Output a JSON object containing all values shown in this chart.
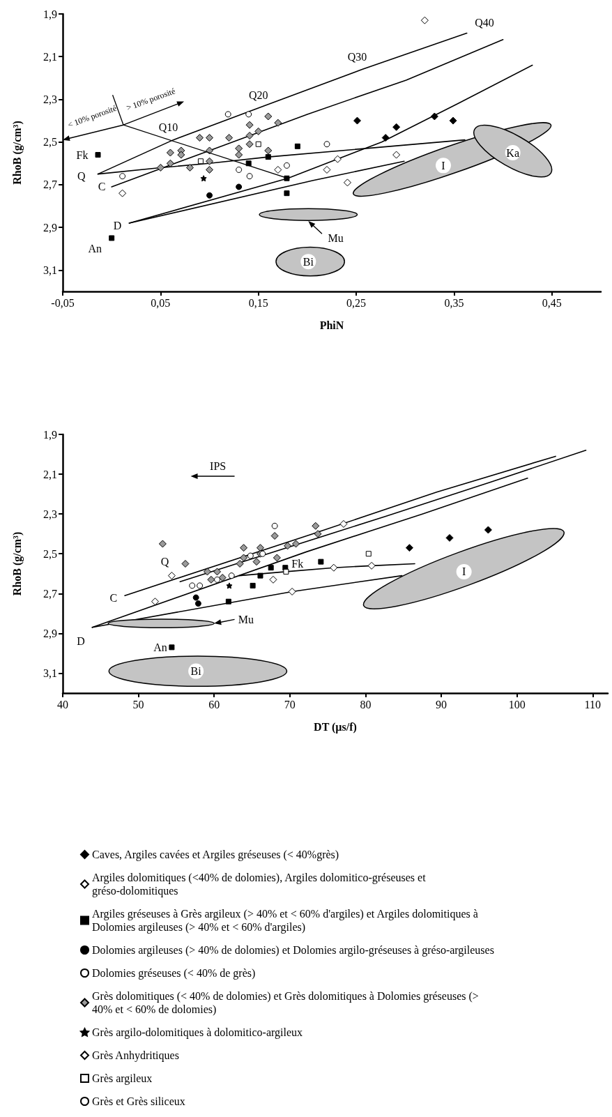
{
  "chart_data": [
    {
      "type": "scatter",
      "xlabel": "PhiN",
      "ylabel": "RhoB (g/cm³)",
      "xlim": [
        -0.05,
        0.5
      ],
      "ylim": [
        3.2,
        1.9
      ],
      "xticks": [
        {
          "value": -0.05,
          "label": "-0,05"
        },
        {
          "value": 0.05,
          "label": "0,05"
        },
        {
          "value": 0.15,
          "label": "0,15"
        },
        {
          "value": 0.25,
          "label": "0,25"
        },
        {
          "value": 0.35,
          "label": "0,35"
        },
        {
          "value": 0.45,
          "label": "0,45"
        }
      ],
      "yticks": [
        {
          "value": 1.9,
          "label": "1,9"
        },
        {
          "value": 2.1,
          "label": "2,1"
        },
        {
          "value": 2.3,
          "label": "2,3"
        },
        {
          "value": 2.5,
          "label": "2,5"
        },
        {
          "value": 2.7,
          "label": "2,7"
        },
        {
          "value": 2.9,
          "label": "2,9"
        },
        {
          "value": 3.1,
          "label": "3,1"
        }
      ],
      "legend": false,
      "line_style": "solid",
      "series": [
        {
          "type": "line",
          "color": "#000000",
          "x": [
            -0.014,
            0.063,
            0.156,
            0.256,
            0.363
          ],
          "values": [
            2.65,
            2.49,
            2.33,
            2.16,
            1.99
          ]
        },
        {
          "type": "line",
          "color": "#000000",
          "x": [
            0.0,
            0.1,
            0.2,
            0.301,
            0.4
          ],
          "values": [
            2.71,
            2.54,
            2.37,
            2.21,
            2.02
          ]
        },
        {
          "type": "line",
          "color": "#000000",
          "x": [
            -0.014,
            0.05,
            0.1,
            0.16,
            0.361
          ],
          "values": [
            2.65,
            2.62,
            2.6,
            2.57,
            2.49
          ]
        },
        {
          "type": "line",
          "color": "#000000",
          "x": [
            0.018,
            0.18,
            0.276,
            0.354,
            0.43
          ],
          "values": [
            2.88,
            2.67,
            2.5,
            2.32,
            2.14
          ]
        },
        {
          "type": "line",
          "color": "#000000",
          "x": [
            0.018,
            0.206,
            0.299
          ],
          "values": [
            2.88,
            2.68,
            2.59
          ]
        },
        {
          "type": "scatter",
          "color": "#000000",
          "marker": "square",
          "x": [
            -0.014,
            0.0
          ],
          "values": [
            2.56,
            2.95
          ]
        },
        {
          "color": "#000000",
          "marker": "diamond",
          "x": [
            0.251,
            0.291,
            0.33,
            0.349,
            0.28
          ],
          "values": [
            2.4,
            2.43,
            2.38,
            2.4,
            2.48
          ]
        },
        {
          "color": "#ffffff",
          "marker": "diamond",
          "x": [
            0.011,
            0.17,
            0.231,
            0.22
          ],
          "values": [
            2.74,
            2.63,
            2.58,
            2.63
          ]
        },
        {
          "color": "#000000",
          "marker": "square",
          "x": [
            0.19,
            0.14,
            0.16,
            0.179,
            0.179
          ],
          "values": [
            2.52,
            2.6,
            2.57,
            2.67,
            2.74
          ]
        },
        {
          "color": "#000000",
          "marker": "circle",
          "x": [
            0.1,
            0.13
          ],
          "values": [
            2.75,
            2.71
          ]
        },
        {
          "color": "#ffffff",
          "marker": "circle",
          "x": [
            0.13,
            0.141,
            0.179,
            0.22
          ],
          "values": [
            2.63,
            2.66,
            2.61,
            2.51
          ]
        },
        {
          "color": "#9a9a9a",
          "marker": "diamond",
          "x": [
            0.16,
            0.141,
            0.141,
            0.15,
            0.141,
            0.17,
            0.09,
            0.1,
            0.12,
            0.1,
            0.13,
            0.13,
            0.16,
            0.06,
            0.071,
            0.071,
            0.06,
            0.08,
            0.1,
            0.1,
            0.05
          ],
          "values": [
            2.38,
            2.42,
            2.47,
            2.45,
            2.51,
            2.41,
            2.48,
            2.48,
            2.48,
            2.54,
            2.53,
            2.56,
            2.54,
            2.55,
            2.54,
            2.56,
            2.6,
            2.62,
            2.59,
            2.63,
            2.62
          ]
        },
        {
          "color": "#000000",
          "marker": "star",
          "x": [
            0.094
          ],
          "values": [
            2.67
          ]
        },
        {
          "color": "#ffffff",
          "marker": "diamond",
          "x": [
            0.32,
            0.291,
            0.241
          ],
          "values": [
            1.93,
            2.56,
            2.69
          ]
        },
        {
          "color": "#ffffff",
          "marker": "square",
          "x": [
            0.15,
            0.091
          ],
          "values": [
            2.51,
            2.59
          ]
        },
        {
          "color": "#ffffff",
          "marker": "circle",
          "x": [
            0.119,
            0.14,
            0.011
          ],
          "values": [
            2.37,
            2.37,
            2.66
          ]
        }
      ],
      "annotations": [
        "Q10",
        "Q20",
        "Q30",
        "Q40",
        "Fk",
        "Q",
        "C",
        "D",
        "An",
        "I",
        "Ka",
        "Mu",
        "Bi",
        {
          "text": "< 10% porosité",
          "x": 0.18,
          "y": 2.67
        },
        "> 10% porosité"
      ]
    },
    {
      "type": "scatter",
      "xlabel": "DT (µs/f)",
      "ylabel": "RhoB (g/cm³)",
      "xlim": [
        40,
        112
      ],
      "ylim": [
        3.2,
        1.9
      ],
      "xticks": [
        40,
        50,
        60,
        70,
        80,
        90,
        100,
        110
      ],
      "yticks": [
        {
          "value": 1.9,
          "label": "1,9"
        },
        {
          "value": 2.1,
          "label": "2,1"
        },
        {
          "value": 2.3,
          "label": "2,3"
        },
        {
          "value": 2.5,
          "label": "2,5"
        },
        {
          "value": 2.7,
          "label": "2,7"
        },
        {
          "value": 2.9,
          "label": "2,9"
        },
        {
          "value": 3.1,
          "label": "3,1"
        }
      ],
      "legend": "bottom",
      "line_style": "solid",
      "series": [
        {
          "type": "line",
          "color": "#000000",
          "x": [
            48.2,
            73.0,
            89.4,
            105.1
          ],
          "values": [
            2.71,
            2.4,
            2.19,
            2.01
          ]
        },
        {
          "type": "line",
          "color": "#000000",
          "x": [
            55.5,
            82.8,
            96.5,
            109.1
          ],
          "values": [
            2.64,
            2.31,
            2.14,
            1.98
          ]
        },
        {
          "type": "line",
          "color": "#000000",
          "x": [
            43.9,
            72.2,
            87.5,
            101.4
          ],
          "values": [
            2.87,
            2.49,
            2.3,
            2.12
          ]
        },
        {
          "type": "line",
          "color": "#000000",
          "x": [
            43.9,
            70.3,
            84.8
          ],
          "values": [
            2.87,
            2.69,
            2.61
          ]
        },
        {
          "type": "line",
          "color": "#000000",
          "x": [
            63.3,
            69.5,
            75.8,
            80.8,
            86.5
          ],
          "values": [
            2.61,
            2.59,
            2.57,
            2.56,
            2.55
          ]
        },
        {
          "type": "scatter",
          "color": "#000000",
          "marker": "square",
          "x": [
            54.4,
            69.4
          ],
          "values": [
            2.97,
            2.57
          ]
        },
        {
          "name": "Caves, Argiles cavées et Argiles gréseuses (< 40%grès)",
          "color": "#000000",
          "marker": "diamond",
          "x": [
            85.8,
            91.1,
            96.2
          ],
          "values": [
            2.47,
            2.42,
            2.38
          ]
        },
        {
          "name": "Argiles dolomitiques (<40% de dolomies), Argiles dolomitico-gréseuses et gréso-dolomitiques",
          "color": "#ffffff",
          "marker": "diamond",
          "x": [
            52.2,
            54.4,
            70.3
          ],
          "values": [
            2.74,
            2.61,
            2.69
          ]
        },
        {
          "name": "Argiles gréseuses à Grès argileux (> 40% et < 60% d'argiles) et Argiles dolomitiques à Dolomies argileuses (> 40% et < 60% d'argiles)",
          "color": "#000000",
          "marker": "square",
          "x": [
            61.9,
            65.1,
            66.1,
            67.5,
            74.1
          ],
          "values": [
            2.74,
            2.66,
            2.61,
            2.57,
            2.54
          ]
        },
        {
          "name": "Dolomies argileuses (> 40% de dolomies) et Dolomies argilo-gréseuses à gréso-argileuses",
          "color": "#000000",
          "marker": "circle",
          "x": [
            57.6,
            57.9
          ],
          "values": [
            2.72,
            2.75
          ]
        },
        {
          "name": "Dolomies gréseuses (< 40% de grès)",
          "color": "#ffffff",
          "marker": "circle",
          "x": [
            58.1,
            60.4,
            62.3,
            66.4
          ],
          "values": [
            2.66,
            2.63,
            2.61,
            2.5
          ]
        },
        {
          "name": "Grès dolomitiques (< 40% de dolomies) et Grès dolomitiques à Dolomies gréseuses (> 40% et < 60% de dolomies)",
          "color": "#9a9a9a",
          "marker": "diamond",
          "x": [
            53.2,
            56.2,
            59.1,
            59.6,
            60.4,
            61.1,
            63.4,
            63.9,
            63.9,
            65.6,
            66.1,
            66.1,
            68.0,
            68.3,
            69.7,
            70.8,
            73.4,
            73.7
          ],
          "values": [
            2.45,
            2.55,
            2.59,
            2.63,
            2.59,
            2.62,
            2.55,
            2.47,
            2.52,
            2.54,
            2.47,
            2.5,
            2.41,
            2.52,
            2.46,
            2.45,
            2.36,
            2.4
          ]
        },
        {
          "name": "Grès argilo-dolomitiques à dolomitico-argileux",
          "color": "#000000",
          "marker": "star",
          "x": [
            62.0
          ],
          "values": [
            2.66
          ]
        },
        {
          "name": "Grès Anhydritiques",
          "color": "#ffffff",
          "marker": "diamond",
          "x": [
            67.8,
            77.1,
            75.8,
            80.8
          ],
          "values": [
            2.63,
            2.35,
            2.57,
            2.56
          ]
        },
        {
          "name": "Grès argileux",
          "color": "#ffffff",
          "marker": "square",
          "x": [
            69.5,
            80.4
          ],
          "values": [
            2.59,
            2.5
          ]
        },
        {
          "name": "Grès et Grès siliceux",
          "color": "#ffffff",
          "marker": "circle",
          "x": [
            68.0,
            57.1,
            64.8
          ],
          "values": [
            2.36,
            2.66,
            2.51
          ]
        }
      ],
      "annotations": [
        "IPS",
        "Q",
        "C",
        "D",
        "An",
        "Fk",
        "Mu",
        "I",
        "Bi"
      ]
    }
  ]
}
